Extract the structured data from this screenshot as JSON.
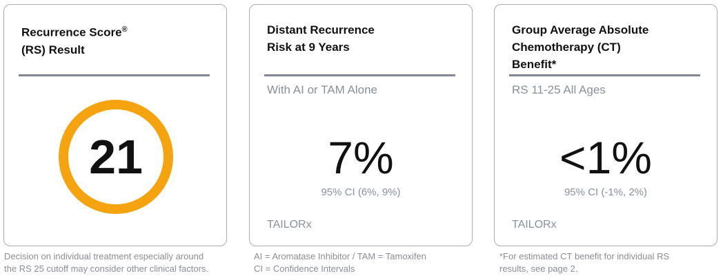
{
  "accent_color": "#f5a30f",
  "cards": [
    {
      "title_line1": "Recurrence Score",
      "title_mark": "®",
      "title_line2": "(RS) Result",
      "value": "21",
      "note": [
        "Decision on individual treatment especially around",
        "the RS 25 cutoff may consider other clinical factors."
      ]
    },
    {
      "title_line1": "Distant Recurrence",
      "title_line2": "Risk at 9 Years",
      "subtitle": "With AI or TAM Alone",
      "value": "7%",
      "ci": "95% CI (6%, 9%)",
      "source": "TAILORx",
      "note": [
        "AI = Aromatase Inhibitor / TAM = Tamoxifen",
        "CI = Confidence Intervals"
      ]
    },
    {
      "title_line1": "Group Average Absolute",
      "title_line2": "Chemotherapy (CT)",
      "title_line3": "Benefit*",
      "subtitle": "RS 11-25 All Ages",
      "value": "<1%",
      "ci": "95% CI (-1%, 2%)",
      "source": "TAILORx",
      "note": [
        "*For estimated CT benefit for individual RS",
        "results, see page 2."
      ]
    }
  ]
}
